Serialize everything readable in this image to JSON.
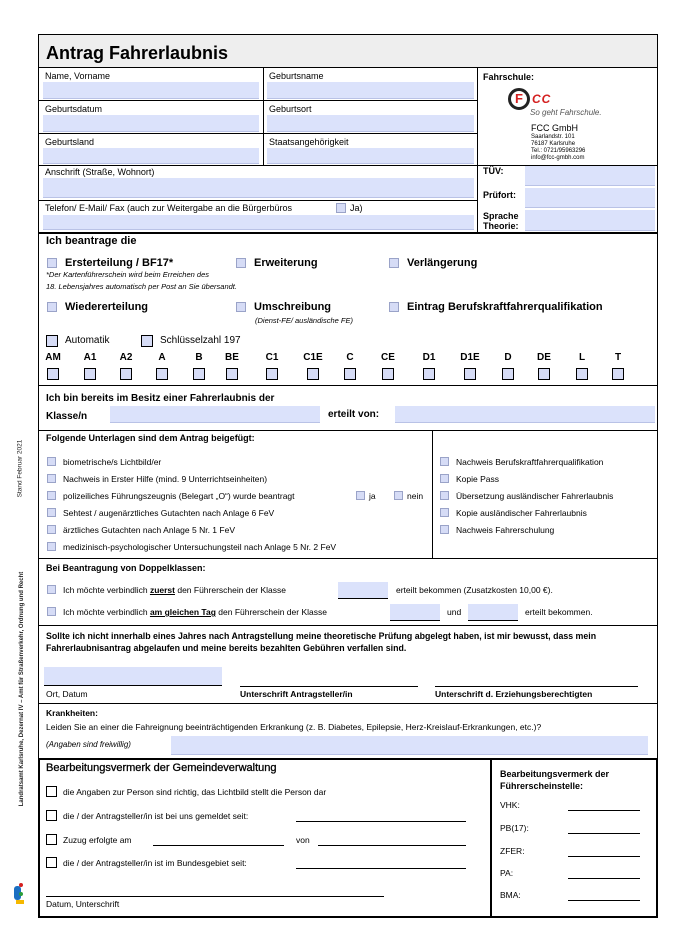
{
  "title": "Antrag Fahrerlaubnis",
  "personal": {
    "name": "Name, Vorname",
    "birthname": "Geburtsname",
    "birthdate": "Geburtsdatum",
    "birthplace": "Geburtsort",
    "birthcountry": "Geburtsland",
    "nationality": "Staatsangehörigkeit",
    "address": "Anschrift (Straße, Wohnort)",
    "phone": "Telefon/ E-Mail/ Fax (auch zur Weitergabe an die Bürgerbüros",
    "phone_ja": "Ja)"
  },
  "school": {
    "label": "Fahrschule:",
    "logo_text": "CC",
    "slogan": "So geht Fahrschule.",
    "company": "FCC GmbH",
    "street": "Saarlandstr. 101",
    "city": "76187 Karlsruhe",
    "tel": "Tel.: 0721/95963296",
    "email": "info@fcc-gmbh.com",
    "tuev": "TÜV:",
    "pruefort": "Prüfort:",
    "sprache1": "Sprache",
    "sprache2": "Theorie:"
  },
  "apply": {
    "heading": "Ich beantrage die",
    "options": [
      "Ersterteilung / BF17*",
      "Erweiterung",
      "Verlängerung",
      "Wiedererteilung",
      "Umschreibung",
      "Eintrag Berufskraftfahrerqualifikation"
    ],
    "footnote1": "*Der Kartenführerschein wird beim Erreichen des",
    "footnote2": "18. Lebensjahres automatisch per Post an Sie übersandt.",
    "umschreibung_note": "(Dienst-FE/ ausländische FE)",
    "automatik": "Automatik",
    "schluessel": "Schlüsselzahl 197",
    "classes": [
      "AM",
      "A1",
      "A2",
      "A",
      "B",
      "BE",
      "C1",
      "C1E",
      "C",
      "CE",
      "D1",
      "D1E",
      "D",
      "DE",
      "L",
      "T"
    ]
  },
  "existing": {
    "line1": "Ich bin bereits im Besitz einer Fahrerlaubnis der",
    "klasse": "Klasse/n",
    "erteilt": "erteilt von:"
  },
  "docs": {
    "heading": "Folgende Unterlagen sind dem Antrag beigefügt:",
    "left": [
      "biometrische/s Lichtbild/er",
      "Nachweis in Erster Hilfe (mind. 9 Unterrichtseinheiten)",
      "polizeiliches Führungszeugnis (Belegart „O“) wurde beantragt",
      "Sehtest / augenärztliches Gutachten nach Anlage 6 FeV",
      "ärztliches Gutachten nach Anlage 5 Nr. 1 FeV",
      "medizinisch-psychologischer Untersuchungsteil nach Anlage 5 Nr. 2 FeV"
    ],
    "ja": "ja",
    "nein": "nein",
    "right": [
      "Nachweis Berufskraftfahrerqualifikation",
      "Kopie Pass",
      "Übersetzung ausländischer Fahrerlaubnis",
      "Kopie ausländischer Fahrerlaubnis",
      "Nachweis Fahrerschulung"
    ]
  },
  "double": {
    "heading": "Bei Beantragung von Doppelklassen:",
    "r1a": "Ich möchte verbindlich ",
    "r1b": "zuerst",
    "r1c": " den Führerschein der Klasse",
    "r1d": "erteilt bekommen (Zusatzkosten 10,00 €).",
    "r2a": "Ich möchte verbindlich ",
    "r2b": "am gleichen Tag",
    "r2c": " den Führerschein der Klasse",
    "r2und": "und",
    "r2d": "erteilt bekommen."
  },
  "notice": {
    "text": "Sollte ich nicht innerhalb eines Jahres nach Antragstellung meine theoretische Prüfung abgelegt haben, ist mir bewusst, dass mein Fahrerlaubnisantrag abgelaufen und meine bereits bezahlten Gebühren verfallen sind.",
    "ort": "Ort, Datum",
    "sig1": "Unterschrift Antragsteller/in",
    "sig2": "Unterschrift d. Erziehungsberechtigten"
  },
  "illness": {
    "heading": "Krankheiten:",
    "question": "Leiden Sie an einer die Fahreignung beeinträchtigenden Erkrankung (z. B. Diabetes, Epilepsie, Herz-Kreislauf-Erkrankungen, etc.)?",
    "voluntary": "(Angaben sind freiwillig)"
  },
  "gemeinde": {
    "heading": "Bearbeitungsvermerk der Gemeindeverwaltung",
    "items": [
      "die Angaben zur Person sind richtig, das Lichtbild stellt die Person dar",
      "die / der Antragsteller/in ist bei uns gemeldet seit:",
      "Zuzug erfolgte am",
      "die / der Antragsteller/in ist im Bundesgebiet seit:"
    ],
    "von": "von",
    "datum": "Datum, Unterschrift"
  },
  "fs": {
    "heading1": "Bearbeitungsvermerk der",
    "heading2": "Führerscheinstelle:",
    "fields": [
      "VHK:",
      "PB(17):",
      "ZFER:",
      "PA:",
      "BMA:"
    ]
  },
  "side": {
    "stand": "Stand Februar 2021",
    "office": "Landratsamt Karlsruhe, Dezernat IV – Amt für Straßenverkehr, Ordnung und Recht",
    "logo": "LANDKREIS KARLSRUHE"
  },
  "colors": {
    "field": "#dbe2fb",
    "title_bg": "#eeeeee",
    "logo_red": "#d42020"
  }
}
